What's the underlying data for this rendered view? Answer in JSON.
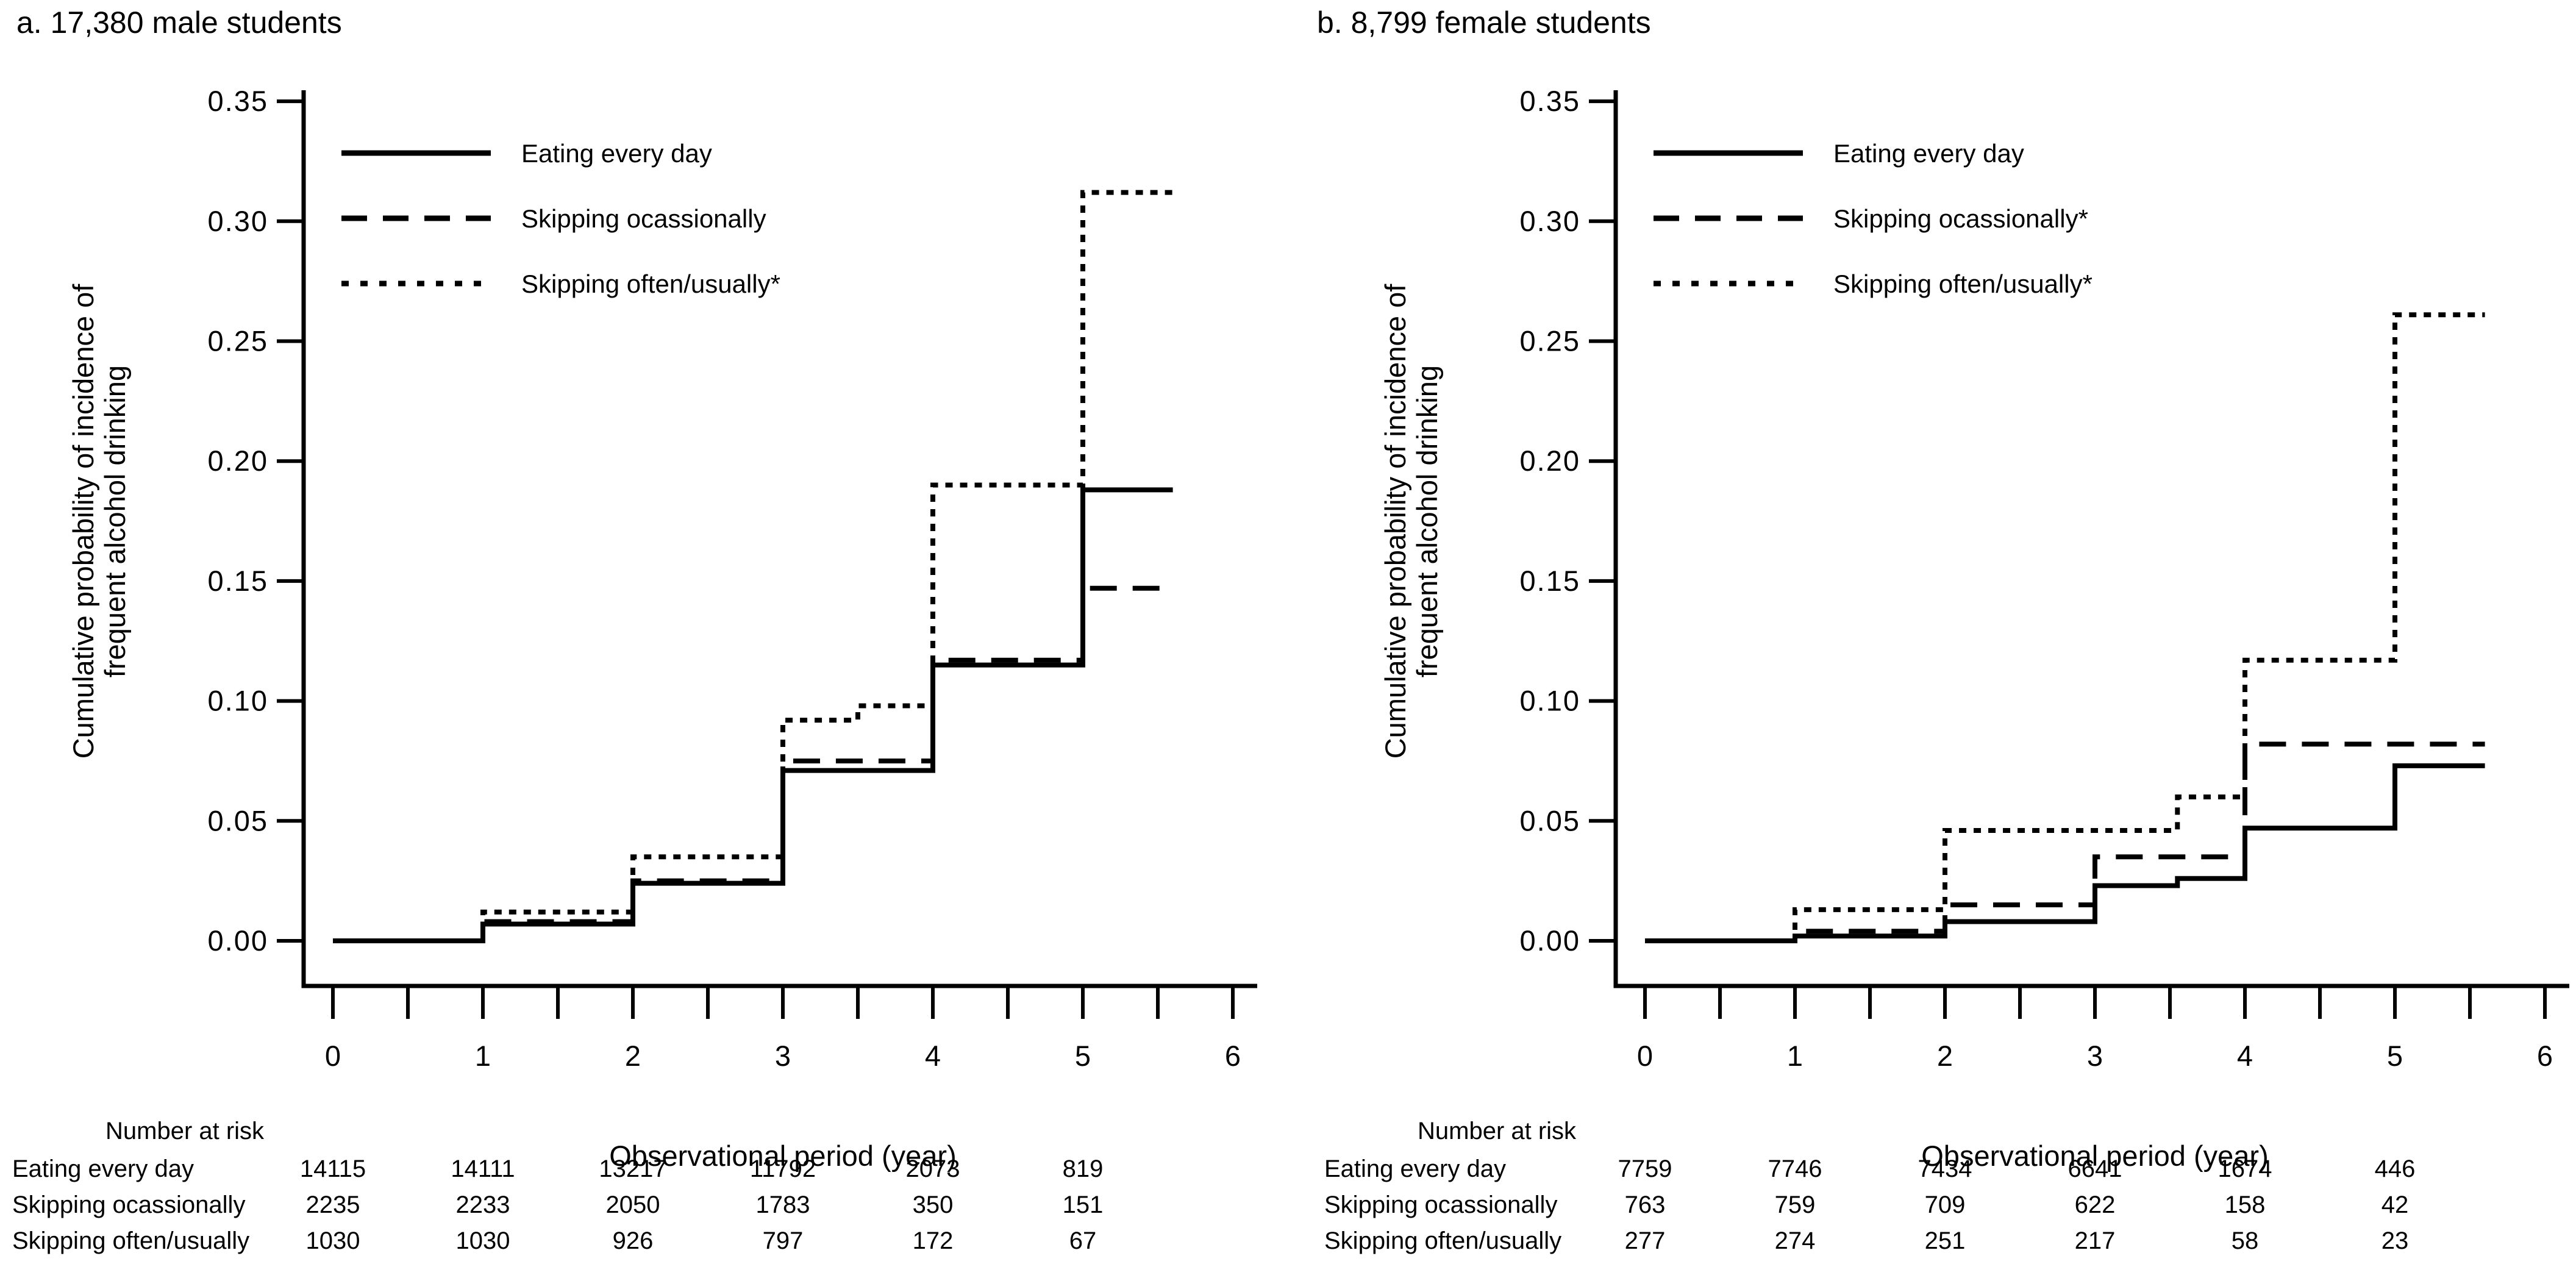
{
  "page": {
    "background": "#ffffff",
    "ink": "#000000"
  },
  "chart_data": [
    {
      "type": "line",
      "subtype": "step-cumulative-incidence",
      "panel_label": "a",
      "title": "a. 17,380 male students",
      "xlabel": "Observational period (year)",
      "ylabel_lines": [
        "Cumulative probability of incidence of",
        "frequent alcohol drinking"
      ],
      "xlim": [
        0,
        6
      ],
      "ylim": [
        0,
        0.35
      ],
      "xticks": [
        0,
        1,
        2,
        3,
        4,
        5,
        6
      ],
      "xminor_step": 0.5,
      "ytick_labels": [
        "0.00",
        "0.05",
        "0.10",
        "0.15",
        "0.20",
        "0.25",
        "0.30",
        "0.35"
      ],
      "grid": false,
      "legend_position": "top-left-inside",
      "curve_end_year": 5.6,
      "series": [
        {
          "name": "Eating every day",
          "line_style": "solid",
          "color": "#000000",
          "steps": [
            [
              0,
              0.0
            ],
            [
              1,
              0.007
            ],
            [
              2,
              0.024
            ],
            [
              3,
              0.071
            ],
            [
              4,
              0.115
            ],
            [
              5,
              0.188
            ],
            [
              5.6,
              0.188
            ]
          ]
        },
        {
          "name": "Skipping ocassionally",
          "line_style": "long-dash",
          "color": "#000000",
          "steps": [
            [
              0,
              0.0
            ],
            [
              1,
              0.008
            ],
            [
              2,
              0.025
            ],
            [
              3,
              0.075
            ],
            [
              4,
              0.117
            ],
            [
              5,
              0.147
            ],
            [
              5.6,
              0.147
            ]
          ]
        },
        {
          "name": "Skipping often/usually*",
          "line_style": "dotted",
          "color": "#000000",
          "steps": [
            [
              0,
              0.0
            ],
            [
              1,
              0.012
            ],
            [
              2,
              0.035
            ],
            [
              3,
              0.092
            ],
            [
              3.5,
              0.098
            ],
            [
              4,
              0.19
            ],
            [
              5,
              0.312
            ],
            [
              5.6,
              0.312
            ]
          ]
        }
      ],
      "risk_table": {
        "header": "Number at risk",
        "time_points": [
          0,
          1,
          2,
          3,
          4,
          5
        ],
        "rows": [
          {
            "label": "Eating every day",
            "values": [
              "14115",
              "14111",
              "13217",
              "11792",
              "2073",
              "819"
            ]
          },
          {
            "label": "Skipping ocassionally",
            "values": [
              "2235",
              "2233",
              "2050",
              "1783",
              "350",
              "151"
            ]
          },
          {
            "label": "Skipping often/usually",
            "values": [
              "1030",
              "1030",
              "926",
              "797",
              "172",
              "67"
            ]
          }
        ]
      }
    },
    {
      "type": "line",
      "subtype": "step-cumulative-incidence",
      "panel_label": "b",
      "title": "b. 8,799 female students",
      "xlabel": "Observational period (year)",
      "ylabel_lines": [
        "Cumulative probability of incidence of",
        "frequent alcohol drinking"
      ],
      "xlim": [
        0,
        6
      ],
      "ylim": [
        0,
        0.35
      ],
      "xticks": [
        0,
        1,
        2,
        3,
        4,
        5,
        6
      ],
      "xminor_step": 0.5,
      "ytick_labels": [
        "0.00",
        "0.05",
        "0.10",
        "0.15",
        "0.20",
        "0.25",
        "0.30",
        "0.35"
      ],
      "grid": false,
      "legend_position": "top-left-inside",
      "curve_end_year": 5.6,
      "series": [
        {
          "name": "Eating every day",
          "line_style": "solid",
          "color": "#000000",
          "steps": [
            [
              0,
              0.0
            ],
            [
              1,
              0.002
            ],
            [
              2,
              0.008
            ],
            [
              3,
              0.023
            ],
            [
              3.55,
              0.026
            ],
            [
              4,
              0.047
            ],
            [
              5,
              0.073
            ],
            [
              5.6,
              0.073
            ]
          ]
        },
        {
          "name": "Skipping ocassionally*",
          "line_style": "long-dash",
          "color": "#000000",
          "steps": [
            [
              0,
              0.0
            ],
            [
              1,
              0.004
            ],
            [
              2,
              0.015
            ],
            [
              3,
              0.035
            ],
            [
              4,
              0.082
            ],
            [
              5.6,
              0.082
            ]
          ]
        },
        {
          "name": "Skipping often/usually*",
          "line_style": "dotted",
          "color": "#000000",
          "steps": [
            [
              0,
              0.0
            ],
            [
              1,
              0.013
            ],
            [
              2,
              0.046
            ],
            [
              3.55,
              0.06
            ],
            [
              4,
              0.117
            ],
            [
              5,
              0.261
            ],
            [
              5.6,
              0.261
            ]
          ]
        }
      ],
      "risk_table": {
        "header": "Number at risk",
        "time_points": [
          0,
          1,
          2,
          3,
          4,
          5
        ],
        "rows": [
          {
            "label": "Eating every day",
            "values": [
              "7759",
              "7746",
              "7434",
              "6641",
              "1674",
              "446"
            ]
          },
          {
            "label": "Skipping ocassionally",
            "values": [
              "763",
              "759",
              "709",
              "622",
              "158",
              "42"
            ]
          },
          {
            "label": "Skipping often/usually",
            "values": [
              "277",
              "274",
              "251",
              "217",
              "58",
              "23"
            ]
          }
        ]
      }
    }
  ]
}
